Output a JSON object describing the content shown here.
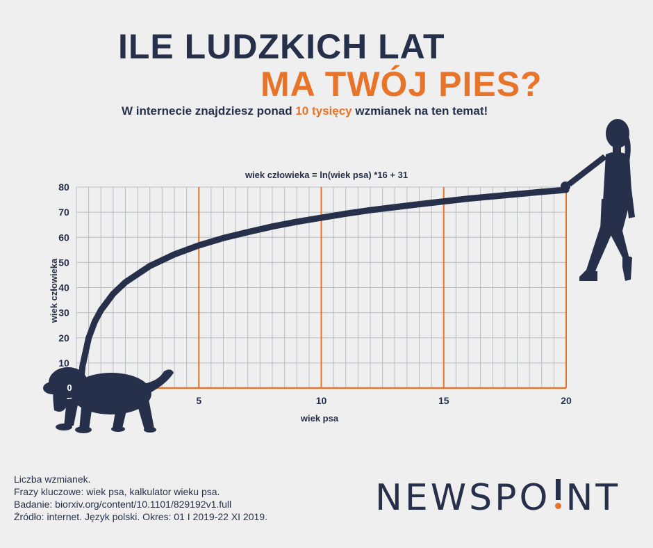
{
  "header": {
    "title_line1": "ILE LUDZKICH LAT",
    "title_line2": "MA TWÓJ PIES?",
    "subtitle_before": "W internecie znajdziesz ponad ",
    "subtitle_highlight": "10 tysięcy",
    "subtitle_after": " wzmianek na ten temat!"
  },
  "colors": {
    "dark": "#27304a",
    "accent": "#e8742a",
    "background": "#efefef"
  },
  "chart_data": {
    "type": "line",
    "title": "wiek człowieka = ln(wiek psa) *16 + 31",
    "xlabel": "wiek psa",
    "ylabel": "wiek człowieka",
    "xlim": [
      0,
      20
    ],
    "ylim": [
      0,
      80
    ],
    "x_ticks": [
      5,
      10,
      15,
      20
    ],
    "y_ticks": [
      0,
      10,
      20,
      30,
      40,
      50,
      60,
      70,
      80
    ],
    "grid": true,
    "minor_x_step": 0.5,
    "series": [
      {
        "x": [
          0.1,
          0.25,
          0.5,
          0.75,
          1,
          1.5,
          2,
          3,
          4,
          5,
          6,
          7,
          8,
          9,
          10,
          11,
          12,
          13,
          14,
          15,
          16,
          17,
          18,
          19,
          20
        ],
        "values": [
          -5.8,
          8.8,
          19.9,
          26.4,
          31.0,
          37.5,
          42.1,
          48.6,
          53.2,
          56.8,
          59.7,
          62.1,
          64.3,
          66.2,
          67.8,
          69.4,
          70.8,
          72.0,
          73.2,
          74.3,
          75.4,
          76.3,
          77.2,
          78.1,
          78.9
        ]
      }
    ],
    "decorations": [
      "dog-silhouette",
      "woman-silhouette"
    ]
  },
  "footer": {
    "lines": [
      "Liczba wzmianek.",
      "Frazy kluczowe: wiek psa, kalkulator wieku psa.",
      "Badanie: biorxiv.org/content/10.1101/829192v1.full",
      "Źródło: internet. Język polski. Okres: 01 I 2019-22 XI 2019."
    ],
    "logo_before": "NEWSPO",
    "logo_after": "NT"
  }
}
